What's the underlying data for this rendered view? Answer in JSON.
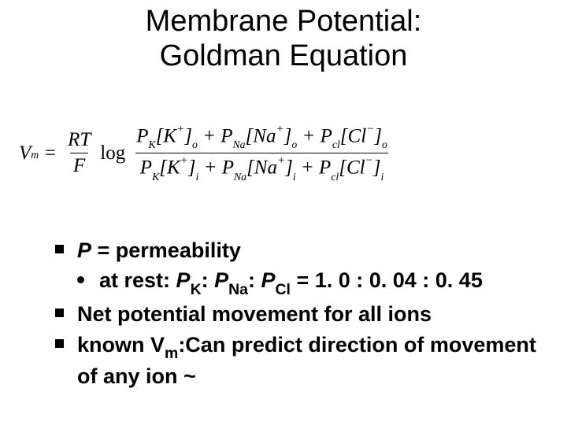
{
  "title": {
    "line1": "Membrane Potential:",
    "line2": "Goldman Equation"
  },
  "equation": {
    "lhs": {
      "var": "V",
      "sub": "m"
    },
    "rt_over_f": {
      "num": "RT",
      "den": "F"
    },
    "log": "log",
    "terms": {
      "k": {
        "P": "P",
        "Psub": "K",
        "ion": "K",
        "charge": "+",
        "out": "o",
        "in": "i"
      },
      "na": {
        "P": "P",
        "Psub": "Na",
        "ion": "Na",
        "charge": "+",
        "out": "o",
        "in": "i"
      },
      "cl": {
        "P": "P",
        "Psub": "cl",
        "ion": "Cl",
        "charge": "−",
        "out": "o",
        "in": "i"
      }
    }
  },
  "bullets": {
    "b1": {
      "pre": "P",
      "post": " = permeability"
    },
    "b1a": {
      "pre": "at rest: ",
      "pk": "P",
      "pks": "K",
      "sep1": ": ",
      "pna": "P",
      "pnas": "Na",
      "sep2": ": ",
      "pcl": "P",
      "pcls": "Cl",
      "vals": " = 1. 0 : 0. 04 : 0. 45"
    },
    "b2": "Net potential movement for all ions",
    "b3": {
      "pre": "known V",
      "sub": "m",
      "post": ":Can predict direction of movement of any ion ~"
    }
  },
  "style": {
    "bg": "#ffffff",
    "fg": "#000000",
    "title_fontsize": 38,
    "body_fontsize": 27,
    "eq_fontsize": 25
  }
}
